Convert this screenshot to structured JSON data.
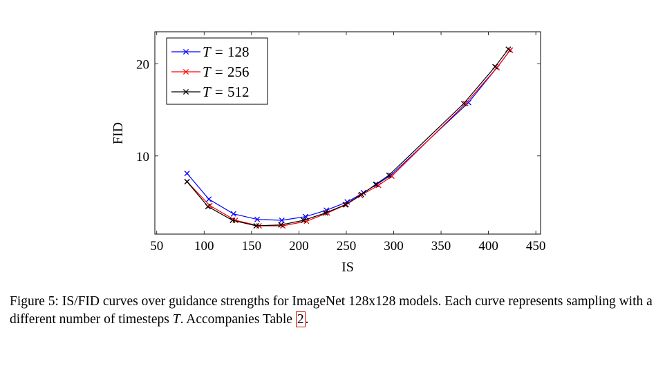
{
  "chart_data": {
    "type": "line",
    "xlabel": "IS",
    "ylabel": "FID",
    "xlim": [
      48,
      455
    ],
    "ylim": [
      1.5,
      23.5
    ],
    "xticks": [
      50,
      100,
      150,
      200,
      250,
      300,
      350,
      400,
      450
    ],
    "yticks": [
      10,
      20
    ],
    "legend_position": "top-left",
    "grid": false,
    "series": [
      {
        "name": "T = 128",
        "legend_var": "T",
        "legend_value": "128",
        "color": "#0000ff",
        "marker": "x",
        "x": [
          82,
          105,
          131,
          156,
          182,
          207,
          229,
          251,
          268,
          282,
          297,
          379,
          409,
          423
        ],
        "y": [
          8.1,
          5.3,
          3.7,
          3.1,
          3.0,
          3.4,
          4.1,
          5.0,
          6.0,
          6.9,
          7.9,
          15.8,
          19.6,
          21.5
        ]
      },
      {
        "name": "T = 256",
        "legend_var": "T",
        "legend_value": "256",
        "color": "#ff0000",
        "marker": "x",
        "x": [
          82,
          106,
          133,
          158,
          183,
          208,
          230,
          250,
          265,
          284,
          298,
          376,
          409,
          423
        ],
        "y": [
          7.2,
          4.6,
          3.0,
          2.4,
          2.4,
          2.9,
          3.8,
          4.7,
          5.7,
          6.8,
          7.8,
          15.7,
          19.6,
          21.5
        ]
      },
      {
        "name": "T = 512",
        "legend_var": "T",
        "legend_value": "512",
        "color": "#000000",
        "marker": "x",
        "x": [
          82,
          104,
          130,
          155,
          181,
          205,
          228,
          249,
          266,
          281,
          295,
          374,
          407,
          421
        ],
        "y": [
          7.2,
          4.5,
          3.0,
          2.4,
          2.5,
          3.0,
          3.8,
          4.7,
          5.8,
          6.9,
          7.9,
          15.7,
          19.7,
          21.6
        ]
      }
    ]
  },
  "caption": {
    "prefix": "Figure 5: IS/FID curves over guidance strengths for ImageNet 128x128 models. Each curve represents sampling with a different number of timesteps ",
    "variable": "T",
    "middle": ". Accompanies Table ",
    "ref": "2",
    "suffix": "."
  }
}
